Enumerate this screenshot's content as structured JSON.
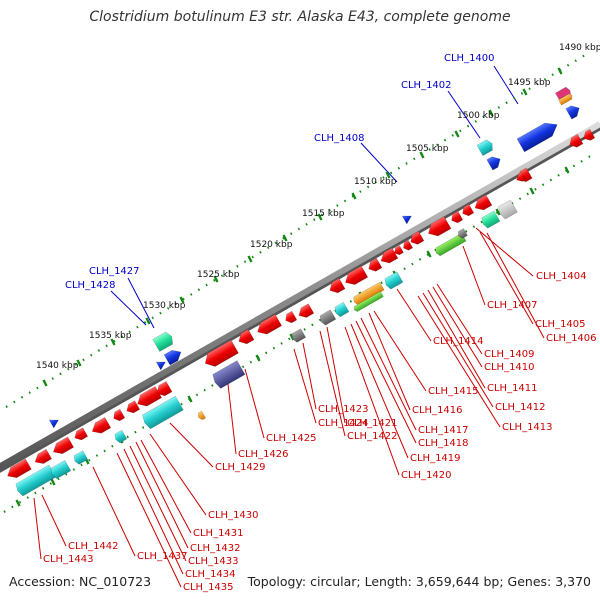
{
  "title": "Clostridium botulinum E3 str. Alaska E43, complete genome",
  "accession": "Accession: NC_010723",
  "summary": "Topology: circular; Length: 3,659,644 bp; Genes: 3,370",
  "colors": {
    "label_blue": "#0000cc",
    "label_red": "#cc0000",
    "backbone": "#8a8a8a",
    "tick_green": "#118811"
  },
  "scale_labels": [
    "1490 kbp",
    "1495 kbp",
    "1500 kbp",
    "1505 kbp",
    "1510 kbp",
    "1515 kbp",
    "1520 kbp",
    "1525 kbp",
    "1530 kbp",
    "1535 kbp",
    "1540 kbp"
  ],
  "forward_genes": [
    {
      "label": "CLH_1400",
      "color": "#1a44dd"
    },
    {
      "label": "CLH_1402",
      "color": "#22bbcc"
    },
    {
      "label": "CLH_1408",
      "color": "#1a44dd"
    },
    {
      "label": "CLH_1427",
      "color": "#22dd99"
    },
    {
      "label": "CLH_1428",
      "color": "#1a44dd"
    }
  ],
  "reverse_genes": [
    "CLH_1404",
    "CLH_1405",
    "CLH_1406",
    "CLH_1407",
    "CLH_1409",
    "CLH_1410",
    "CLH_1411",
    "CLH_1412",
    "CLH_1413",
    "CLH_1414",
    "CLH_1415",
    "CLH_1416",
    "CLH_1417",
    "CLH_1418",
    "CLH_1419",
    "CLH_1420",
    "CLH_1421",
    "CLH_1422",
    "CLH_1423",
    "CLH_1424",
    "CLH_1425",
    "CLH_1426",
    "CLH_1429",
    "CLH_1430",
    "CLH_1431",
    "CLH_1432",
    "CLH_1433",
    "CLH_1434",
    "CLH_1435",
    "CLH_1437",
    "CLH_1442",
    "CLH_1443"
  ]
}
